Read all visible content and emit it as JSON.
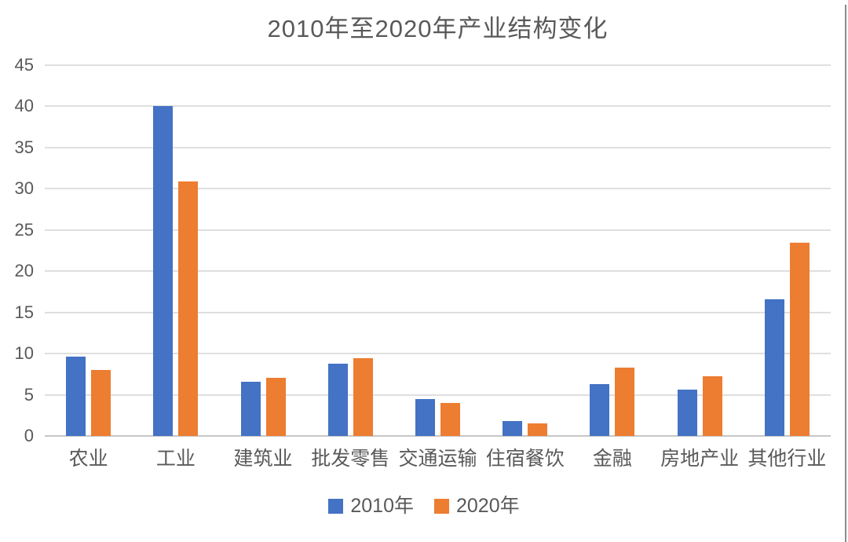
{
  "chart_data": {
    "type": "bar",
    "title": "2010年至2020年产业结构变化",
    "categories": [
      "农业",
      "工业",
      "建筑业",
      "批发零售",
      "交通运输",
      "住宿餐饮",
      "金融",
      "房地产业",
      "其他行业"
    ],
    "series": [
      {
        "name": "2010年",
        "color": "#4472C4",
        "values": [
          9.6,
          40.0,
          6.6,
          8.8,
          4.5,
          1.8,
          6.3,
          5.6,
          16.6
        ]
      },
      {
        "name": "2020年",
        "color": "#ED7D31",
        "values": [
          8.0,
          30.9,
          7.1,
          9.4,
          4.0,
          1.5,
          8.3,
          7.2,
          23.5
        ]
      }
    ],
    "xlabel": "",
    "ylabel": "",
    "ylim": [
      0,
      45
    ],
    "yticks": [
      45,
      40,
      35,
      30,
      25,
      20,
      15,
      10,
      5,
      0
    ],
    "grid": "horizontal",
    "legend_position": "bottom"
  },
  "colors": {
    "title_text": "#595959",
    "axis_text": "#595959",
    "gridline": "#dfdfdf",
    "baseline": "#c6c6c6",
    "background": "#ffffff",
    "right_border": "#8c8c8c"
  }
}
